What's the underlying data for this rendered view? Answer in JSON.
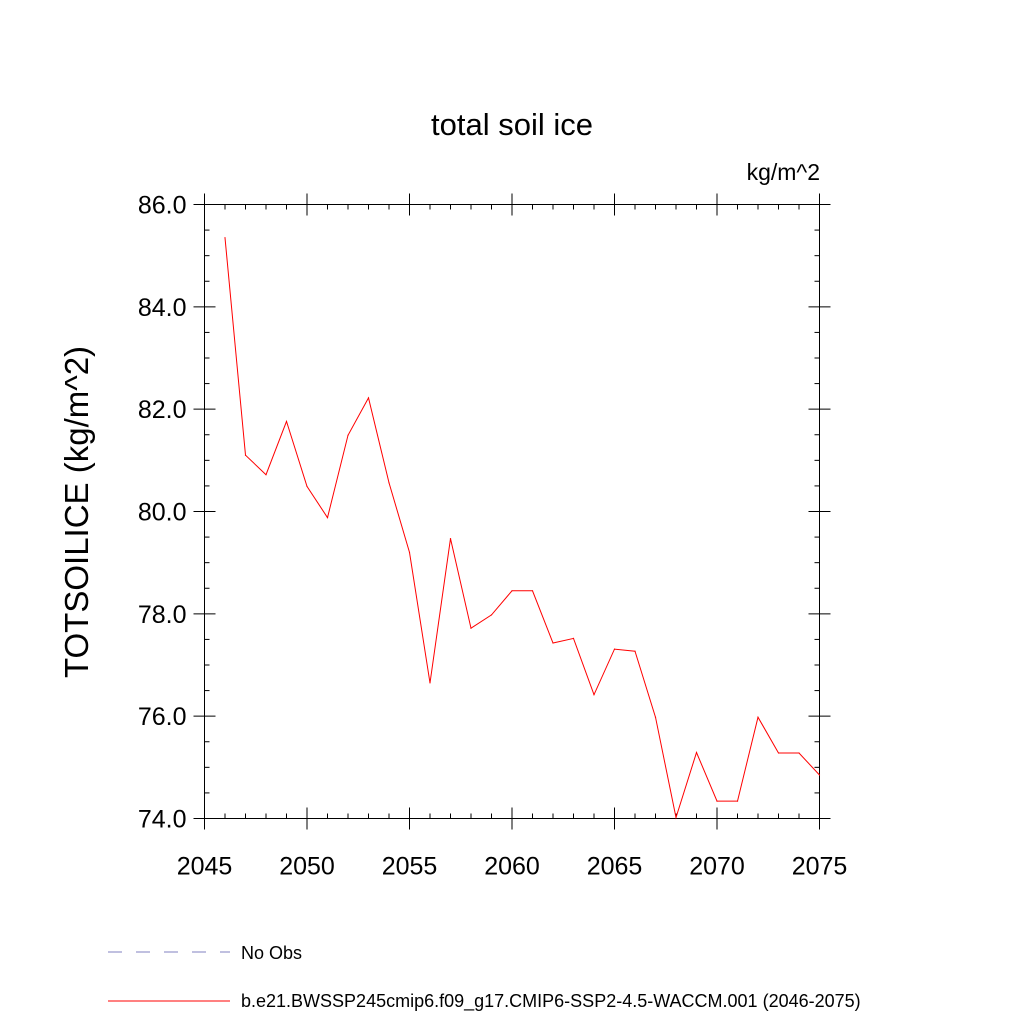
{
  "chart_data": {
    "type": "line",
    "title": "total soil ice",
    "units": "kg/m^2",
    "ylabel": "TOTSOILICE  (kg/m^2)",
    "xlabel": "",
    "xlim": [
      2045,
      2075
    ],
    "ylim": [
      74.0,
      86.0
    ],
    "xticks": [
      2045,
      2050,
      2055,
      2060,
      2065,
      2070,
      2075
    ],
    "xtick_labels": [
      "2045",
      "2050",
      "2055",
      "2060",
      "2065",
      "2070",
      "2075"
    ],
    "yticks": [
      74.0,
      76.0,
      78.0,
      80.0,
      82.0,
      84.0,
      86.0
    ],
    "ytick_labels": [
      "74.0",
      "76.0",
      "78.0",
      "80.0",
      "82.0",
      "84.0",
      "86.0"
    ],
    "grid": false,
    "legend_position": "bottom",
    "series": [
      {
        "name": "b.e21.BWSSP245cmip6.f09_g17.CMIP6-SSP2-4.5-WACCM.001 (2046-2075)",
        "color": "#ff0000",
        "style": "solid",
        "x": [
          2046,
          2047,
          2048,
          2049,
          2050,
          2051,
          2052,
          2053,
          2054,
          2055,
          2056,
          2057,
          2058,
          2059,
          2060,
          2061,
          2062,
          2063,
          2064,
          2065,
          2066,
          2067,
          2068,
          2069,
          2070,
          2071,
          2072,
          2073,
          2074,
          2075
        ],
        "y": [
          85.35,
          81.1,
          80.72,
          81.76,
          80.49,
          79.88,
          81.49,
          82.22,
          80.56,
          79.2,
          76.65,
          79.47,
          77.72,
          77.98,
          78.45,
          78.45,
          77.43,
          77.52,
          76.42,
          77.31,
          77.27,
          75.98,
          74.02,
          75.29,
          74.34,
          74.34,
          75.98,
          75.28,
          75.28,
          74.85
        ]
      }
    ],
    "legend": [
      {
        "label": "No Obs",
        "color": "#8080c0",
        "style": "dashed"
      },
      {
        "label": "b.e21.BWSSP245cmip6.f09_g17.CMIP6-SSP2-4.5-WACCM.001 (2046-2075)",
        "color": "#ff0000",
        "style": "solid"
      }
    ]
  }
}
